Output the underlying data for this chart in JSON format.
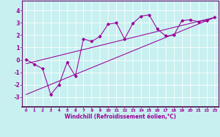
{
  "xlabel": "Windchill (Refroidissement éolien,°C)",
  "bg_color": "#c8f0f0",
  "line_color": "#990099",
  "xlim": [
    -0.5,
    23.5
  ],
  "ylim": [
    -3.8,
    4.8
  ],
  "yticks": [
    -3,
    -2,
    -1,
    0,
    1,
    2,
    3,
    4
  ],
  "xticks": [
    0,
    1,
    2,
    3,
    4,
    5,
    6,
    7,
    8,
    9,
    10,
    11,
    12,
    13,
    14,
    15,
    16,
    17,
    18,
    19,
    20,
    21,
    22,
    23
  ],
  "data_x": [
    0,
    1,
    2,
    3,
    4,
    5,
    6,
    7,
    8,
    9,
    10,
    11,
    12,
    13,
    14,
    15,
    16,
    17,
    18,
    19,
    20,
    21,
    22,
    23
  ],
  "data_y": [
    0.05,
    -0.35,
    -0.7,
    -2.8,
    -2.0,
    -0.2,
    -1.3,
    1.7,
    1.5,
    1.9,
    2.9,
    3.0,
    1.7,
    2.95,
    3.55,
    3.65,
    2.5,
    1.95,
    2.0,
    3.2,
    3.25,
    3.1,
    3.2,
    3.45
  ],
  "trend1_x": [
    0,
    23
  ],
  "trend1_y": [
    -0.3,
    3.45
  ],
  "trend2_x": [
    0,
    23
  ],
  "trend2_y": [
    -2.8,
    3.45
  ]
}
